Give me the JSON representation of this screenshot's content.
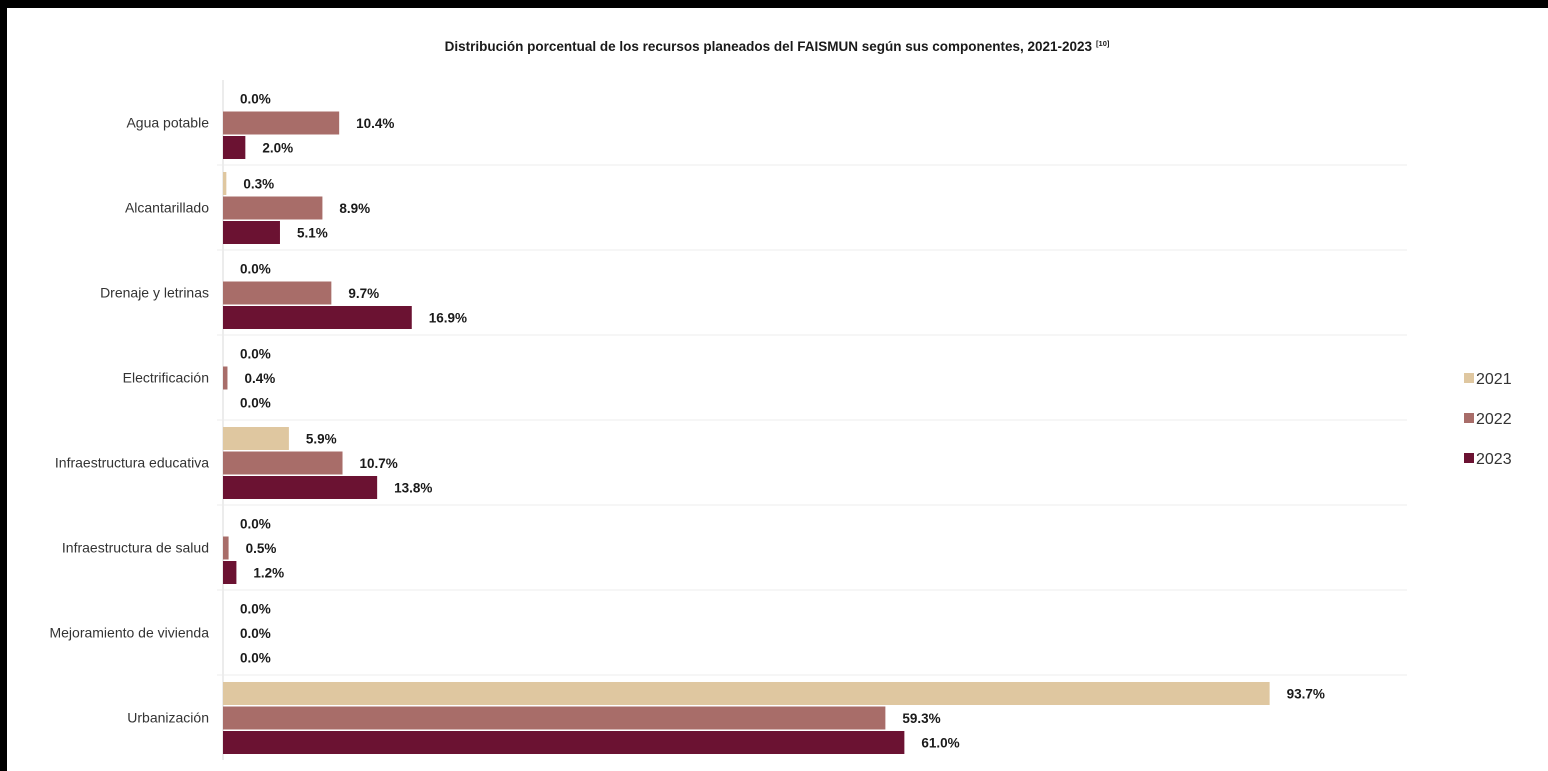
{
  "chart_data": {
    "type": "bar",
    "orientation": "horizontal",
    "title": "Distribución porcentual de los recursos planeados del FAISMUN según sus componentes, 2021-2023",
    "title_superscript": "[10]",
    "categories": [
      "Agua potable",
      "Alcantarillado",
      "Drenaje y letrinas",
      "Electrificación",
      "Infraestructura educativa",
      "Infraestructura de salud",
      "Mejoramiento de vivienda",
      "Urbanización"
    ],
    "series": [
      {
        "name": "2021",
        "color": "#dfc7a0",
        "values": [
          0.0,
          0.3,
          0.0,
          0.0,
          5.9,
          0.0,
          0.0,
          93.7
        ],
        "labels": [
          "0.0%",
          "0.3%",
          "0.0%",
          "0.0%",
          "5.9%",
          "0.0%",
          "0.0%",
          "93.7%"
        ]
      },
      {
        "name": "2022",
        "color": "#a86d69",
        "values": [
          10.4,
          8.9,
          9.7,
          0.4,
          10.7,
          0.5,
          0.0,
          59.3
        ],
        "labels": [
          "10.4%",
          "8.9%",
          "9.7%",
          "0.4%",
          "10.7%",
          "0.5%",
          "0.0%",
          "59.3%"
        ]
      },
      {
        "name": "2023",
        "color": "#6b1232",
        "values": [
          2.0,
          5.1,
          16.9,
          0.0,
          13.8,
          1.2,
          0.0,
          61.0
        ],
        "labels": [
          "2.0%",
          "5.1%",
          "16.9%",
          "0.0%",
          "13.8%",
          "1.2%",
          "0.0%",
          "61.0%"
        ]
      }
    ],
    "xlim": [
      0,
      100
    ],
    "grid": false,
    "legend_position": "right"
  }
}
